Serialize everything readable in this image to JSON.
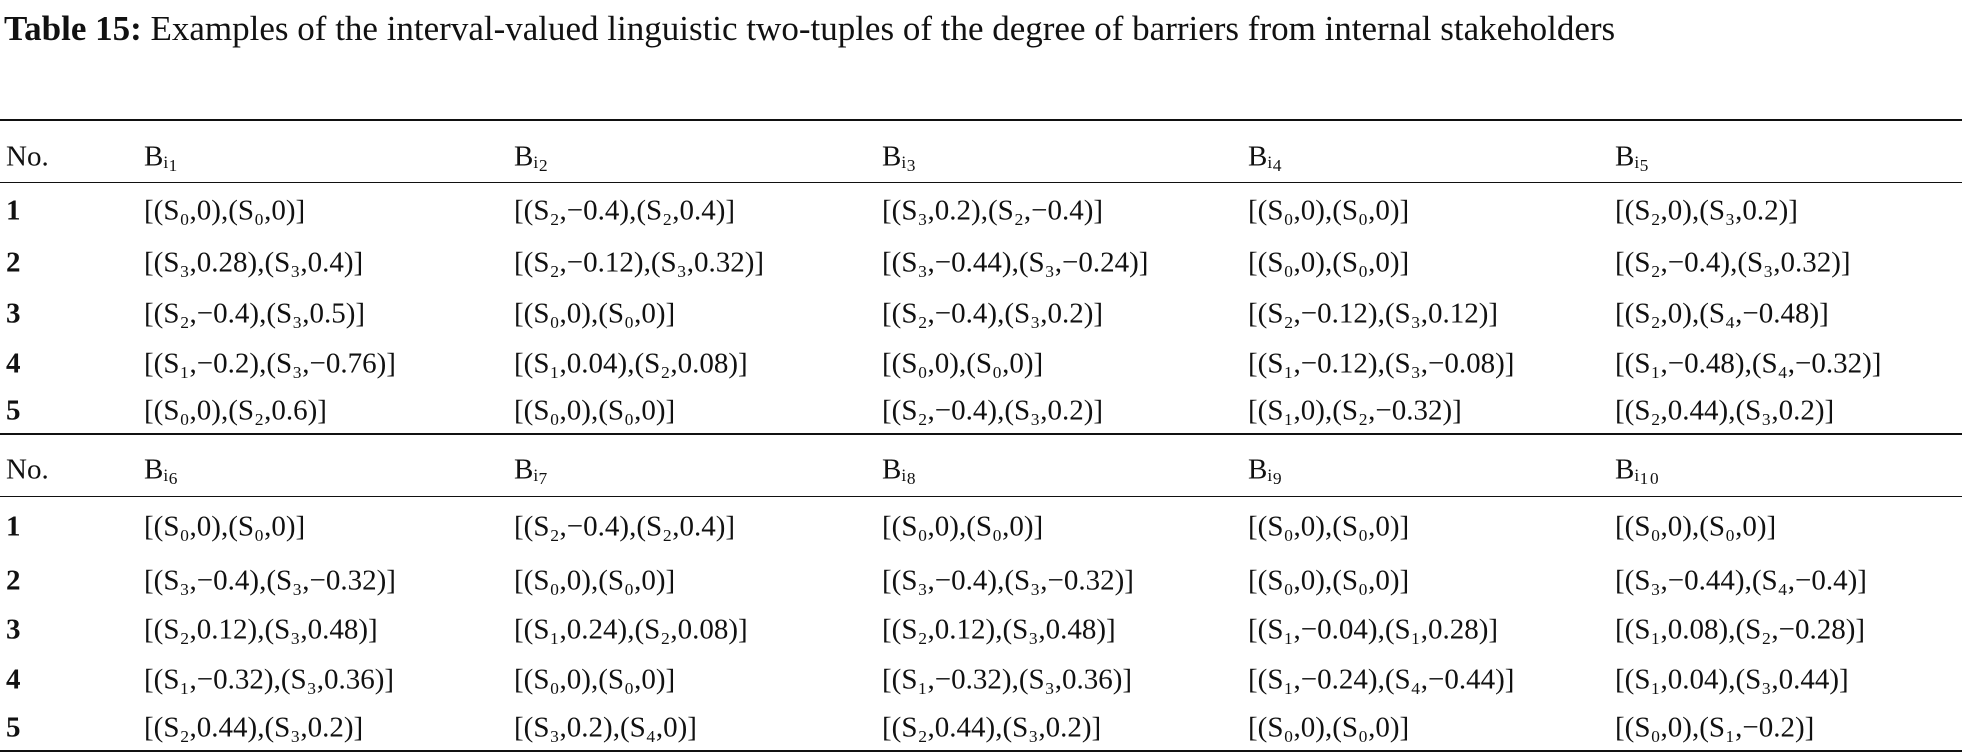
{
  "caption": {
    "label": "Table 15:",
    "text": "Examples of the interval-valued linguistic two-tuples of the degree of barriers from internal stakeholders"
  },
  "tables": [
    {
      "header": [
        "No.",
        "Bᵢ₁",
        "Bᵢ₂",
        "Bᵢ₃",
        "Bᵢ₄",
        "Bᵢ₅"
      ],
      "rows": [
        [
          "1",
          "[(S₀,0),(S₀,0)]",
          "[(S₂,−0.4),(S₂,0.4)]",
          "[(S₃,0.2),(S₂,−0.4)]",
          "[(S₀,0),(S₀,0)]",
          "[(S₂,0),(S₃,0.2)]"
        ],
        [
          "2",
          "[(S₃,0.28),(S₃,0.4)]",
          "[(S₂,−0.12),(S₃,0.32)]",
          "[(S₃,−0.44),(S₃,−0.24)]",
          "[(S₀,0),(S₀,0)]",
          "[(S₂,−0.4),(S₃,0.32)]"
        ],
        [
          "3",
          "[(S₂,−0.4),(S₃,0.5)]",
          "[(S₀,0),(S₀,0)]",
          "[(S₂,−0.4),(S₃,0.2)]",
          "[(S₂,−0.12),(S₃,0.12)]",
          "[(S₂,0),(S₄,−0.48)]"
        ],
        [
          "4",
          "[(S₁,−0.2),(S₃,−0.76)]",
          "[(S₁,0.04),(S₂,0.08)]",
          "[(S₀,0),(S₀,0)]",
          "[(S₁,−0.12),(S₃,−0.08)]",
          "[(S₁,−0.48),(S₄,−0.32)]"
        ],
        [
          "5",
          "[(S₀,0),(S₂,0.6)]",
          "[(S₀,0),(S₀,0)]",
          "[(S₂,−0.4),(S₃,0.2)]",
          "[(S₁,0),(S₂,−0.32)]",
          "[(S₂,0.44),(S₃,0.2)]"
        ]
      ]
    },
    {
      "header": [
        "No.",
        "Bᵢ₆",
        "Bᵢ₇",
        "Bᵢ₈",
        "Bᵢ₉",
        "Bᵢ₁₀"
      ],
      "rows": [
        [
          "1",
          "[(S₀,0),(S₀,0)]",
          "[(S₂,−0.4),(S₂,0.4)]",
          "[(S₀,0),(S₀,0)]",
          "[(S₀,0),(S₀,0)]",
          "[(S₀,0),(S₀,0)]"
        ],
        [
          "2",
          "[(S₃,−0.4),(S₃,−0.32)]",
          "[(S₀,0),(S₀,0)]",
          "[(S₃,−0.4),(S₃,−0.32)]",
          "[(S₀,0),(S₀,0)]",
          "[(S₃,−0.44),(S₄,−0.4)]"
        ],
        [
          "3",
          "[(S₂,0.12),(S₃,0.48)]",
          "[(S₁,0.24),(S₂,0.08)]",
          "[(S₂,0.12),(S₃,0.48)]",
          "[(S₁,−0.04),(S₁,0.28)]",
          "[(S₁,0.08),(S₂,−0.28)]"
        ],
        [
          "4",
          "[(S₁,−0.32),(S₃,0.36)]",
          "[(S₀,0),(S₀,0)]",
          "[(S₁,−0.32),(S₃,0.36)]",
          "[(S₁,−0.24),(S₄,−0.44)]",
          "[(S₁,0.04),(S₃,0.44)]"
        ],
        [
          "5",
          "[(S₂,0.44),(S₃,0.2)]",
          "[(S₃,0.2),(S₄,0)]",
          "[(S₂,0.44),(S₃,0.2)]",
          "[(S₀,0),(S₀,0)]",
          "[(S₀,0),(S₁,−0.2)]"
        ]
      ]
    }
  ]
}
